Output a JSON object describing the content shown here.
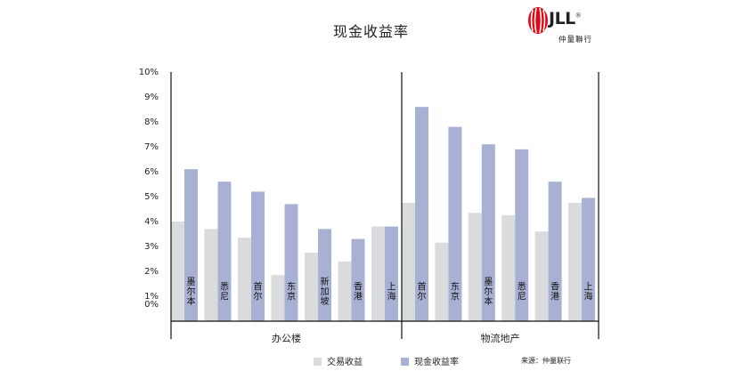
{
  "chart_data": {
    "type": "bar",
    "title": "现金收益率",
    "ylim": [
      0,
      10
    ],
    "yticks": [
      "0%",
      "1%",
      "2%",
      "3%",
      "4%",
      "5%",
      "6%",
      "7%",
      "8%",
      "9%",
      "10%"
    ],
    "groups": [
      {
        "label": "办公楼",
        "categories": [
          "墨尔本",
          "悉尼",
          "首尔",
          "东京",
          "新加坡",
          "香港",
          "上海"
        ],
        "series": [
          {
            "name": "交易收益",
            "values": [
              4.0,
              3.7,
              3.35,
              1.85,
              2.75,
              2.4,
              3.8
            ]
          },
          {
            "name": "现金收益率",
            "values": [
              6.1,
              5.6,
              5.2,
              4.7,
              3.7,
              3.3,
              3.8
            ]
          }
        ]
      },
      {
        "label": "物流地产",
        "categories": [
          "首尔",
          "东京",
          "墨尔本",
          "悉尼",
          "香港",
          "上海"
        ],
        "series": [
          {
            "name": "交易收益",
            "values": [
              4.75,
              3.15,
              4.35,
              4.25,
              3.6,
              4.75
            ]
          },
          {
            "name": "现金收益率",
            "values": [
              8.6,
              7.8,
              7.1,
              6.9,
              5.6,
              4.95
            ]
          }
        ]
      }
    ],
    "colors": {
      "交易收益": "#d9dbdc",
      "现金收益率": "#a8b1d3"
    },
    "legend_position": "bottom",
    "grid": false
  },
  "title": "现金收益率",
  "logo": {
    "text": "JLL",
    "registered": "®",
    "sub": "仲量聯行"
  },
  "legend": {
    "item1": "交易收益",
    "item2": "现金收益率"
  },
  "source": "来源：仲量联行"
}
